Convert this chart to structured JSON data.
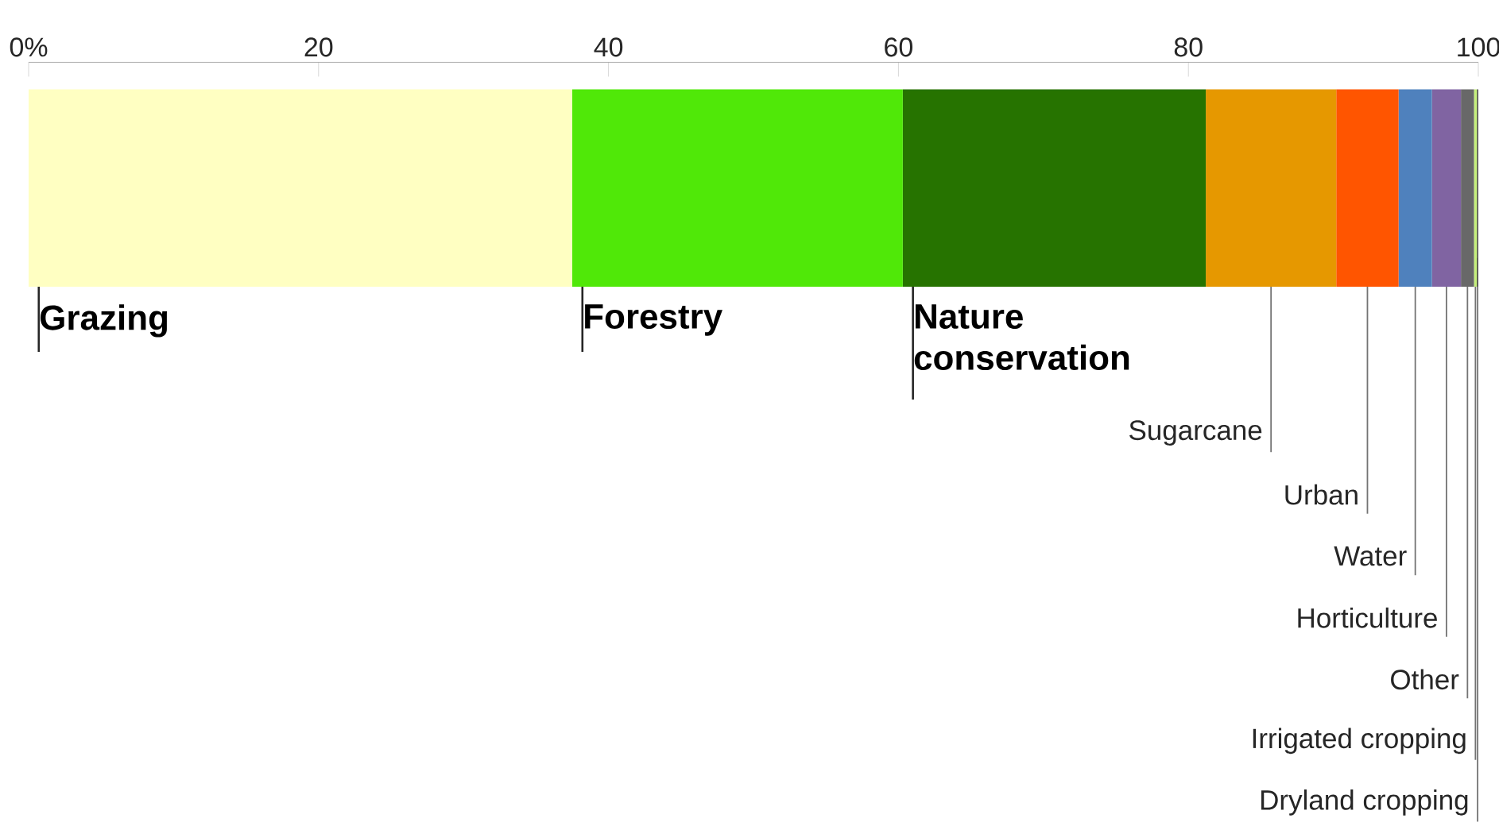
{
  "chart_data": {
    "type": "bar",
    "orientation": "horizontal",
    "stacked": true,
    "categories": [
      null
    ],
    "xlim": [
      0,
      100
    ],
    "xticks": [
      {
        "value": 0,
        "label": "0%"
      },
      20,
      40,
      60,
      80,
      100
    ],
    "series": [
      {
        "name": "Grazing",
        "color": "#ffffc2",
        "values": [
          37.5
        ]
      },
      {
        "name": "Forestry",
        "color": "#50e808",
        "values": [
          22.8
        ]
      },
      {
        "name": "Nature conservation",
        "color": "#267300",
        "values": [
          20.9
        ]
      },
      {
        "name": "Sugarcane",
        "color": "#e69800",
        "values": [
          9.0
        ]
      },
      {
        "name": "Urban",
        "color": "#ff5500",
        "values": [
          4.3
        ]
      },
      {
        "name": "Water",
        "color": "#4f81bd",
        "values": [
          2.3
        ]
      },
      {
        "name": "Horticulture",
        "color": "#8064a2",
        "values": [
          2.0
        ]
      },
      {
        "name": "Other",
        "color": "#686868",
        "values": [
          0.9
        ]
      },
      {
        "name": "Irrigated cropping",
        "color": "#c5f07a",
        "values": [
          0.2
        ]
      },
      {
        "name": "Dryland cropping",
        "color": "#4c4c4c",
        "values": [
          0.1
        ]
      }
    ]
  }
}
